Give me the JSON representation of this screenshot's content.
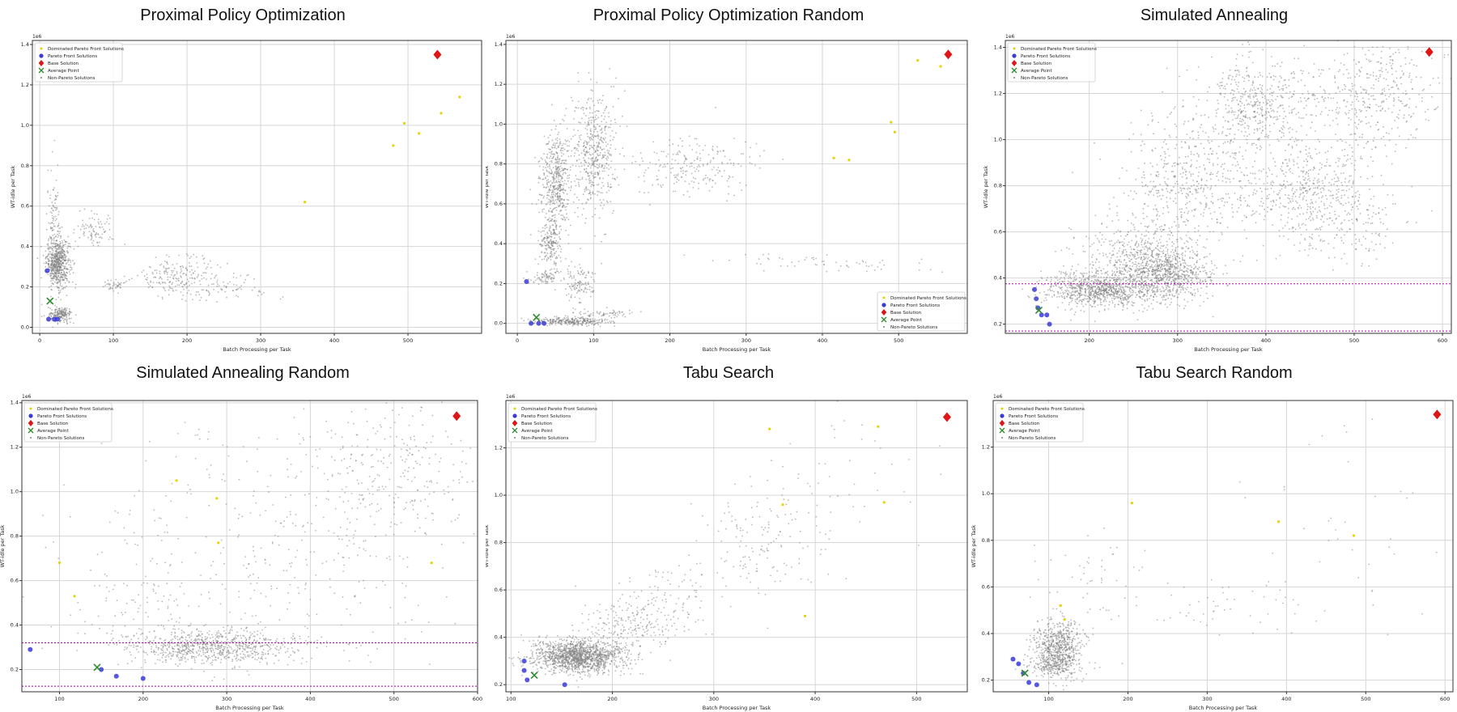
{
  "legend_labels": {
    "dominated": "Dominated Pareto Front Solutions",
    "pareto": "Pareto Front Solutions",
    "base": "Base Solution",
    "average": "Average Point",
    "non_pareto": "Non-Pareto Solutions"
  },
  "colors": {
    "non_pareto": "#808080",
    "dominated": "#e6d200",
    "pareto": "#3a3adb",
    "base": "#e01515",
    "average": "#2e8b2e",
    "threshold": "#b000b0"
  },
  "chart_data": [
    {
      "type": "scatter",
      "title": "Proximal Policy Optimization",
      "xlabel": "Batch Processing per Task",
      "ylabel": "WT-idle per Task",
      "y_scale_label": "1e6",
      "xlim": [
        -10,
        600
      ],
      "ylim": [
        -0.03,
        1.42
      ],
      "xticks": [
        0,
        100,
        200,
        300,
        400,
        500
      ],
      "yticks": [
        0.0,
        0.2,
        0.4,
        0.6,
        0.8,
        1.0,
        1.2,
        1.4
      ],
      "grid": true,
      "legend_position": "upper-left",
      "base": {
        "x": 540,
        "y": 1.35
      },
      "average": {
        "x": 14,
        "y": 0.13
      },
      "pareto_front": [
        [
          10,
          0.28
        ],
        [
          12,
          0.04
        ],
        [
          20,
          0.04
        ],
        [
          24,
          0.04
        ]
      ],
      "dominated": [
        [
          480,
          0.9
        ],
        [
          495,
          1.01
        ],
        [
          515,
          0.96
        ],
        [
          545,
          1.06
        ],
        [
          570,
          1.14
        ],
        [
          360,
          0.62
        ]
      ],
      "threshold_lines": [],
      "non_pareto_clusters": [
        {
          "cx": 25,
          "cy": 0.32,
          "sx": 8,
          "sy": 0.06,
          "n": 600
        },
        {
          "cx": 20,
          "cy": 0.45,
          "sx": 5,
          "sy": 0.15,
          "n": 150
        },
        {
          "cx": 28,
          "cy": 0.06,
          "sx": 8,
          "sy": 0.02,
          "n": 200
        },
        {
          "cx": 75,
          "cy": 0.48,
          "sx": 12,
          "sy": 0.04,
          "n": 90
        },
        {
          "cx": 100,
          "cy": 0.21,
          "sx": 8,
          "sy": 0.015,
          "n": 40
        },
        {
          "cx": 190,
          "cy": 0.25,
          "sx": 30,
          "sy": 0.05,
          "n": 220
        },
        {
          "cx": 260,
          "cy": 0.2,
          "sx": 30,
          "sy": 0.03,
          "n": 60
        }
      ]
    },
    {
      "type": "scatter",
      "title": "Proximal Policy Optimization Random",
      "xlabel": "Batch Processing per Task",
      "ylabel": "WT-idle per Task",
      "y_scale_label": "1e6",
      "xlim": [
        -15,
        590
      ],
      "ylim": [
        -0.05,
        1.42
      ],
      "xticks": [
        0,
        100,
        200,
        300,
        400,
        500
      ],
      "yticks": [
        0.0,
        0.2,
        0.4,
        0.6,
        0.8,
        1.0,
        1.2,
        1.4
      ],
      "grid": true,
      "legend_position": "lower-right",
      "base": {
        "x": 565,
        "y": 1.35
      },
      "average": {
        "x": 25,
        "y": 0.03
      },
      "pareto_front": [
        [
          12,
          0.21
        ],
        [
          18,
          0.0
        ],
        [
          28,
          0.0
        ],
        [
          35,
          0.0
        ]
      ],
      "dominated": [
        [
          415,
          0.83
        ],
        [
          435,
          0.82
        ],
        [
          490,
          1.01
        ],
        [
          495,
          0.96
        ],
        [
          525,
          1.32
        ],
        [
          555,
          1.29
        ]
      ],
      "threshold_lines": [],
      "non_pareto_clusters": [
        {
          "cx": 50,
          "cy": 0.72,
          "sx": 10,
          "sy": 0.12,
          "n": 500
        },
        {
          "cx": 100,
          "cy": 0.85,
          "sx": 15,
          "sy": 0.15,
          "n": 500
        },
        {
          "cx": 45,
          "cy": 0.4,
          "sx": 8,
          "sy": 0.06,
          "n": 200
        },
        {
          "cx": 35,
          "cy": 0.23,
          "sx": 10,
          "sy": 0.02,
          "n": 80
        },
        {
          "cx": 80,
          "cy": 0.2,
          "sx": 10,
          "sy": 0.05,
          "n": 120
        },
        {
          "cx": 70,
          "cy": 0.01,
          "sx": 25,
          "sy": 0.01,
          "n": 300
        },
        {
          "cx": 230,
          "cy": 0.8,
          "sx": 40,
          "sy": 0.07,
          "n": 220
        },
        {
          "cx": 120,
          "cy": 0.05,
          "sx": 20,
          "sy": 0.01,
          "n": 60
        },
        {
          "cx": 400,
          "cy": 0.3,
          "sx": 70,
          "sy": 0.03,
          "n": 60
        }
      ]
    },
    {
      "type": "scatter",
      "title": "Simulated Annealing",
      "xlabel": "Batch Processing per Task",
      "ylabel": "WT-idle per Task",
      "y_scale_label": "1e6",
      "xlim": [
        105,
        610
      ],
      "ylim": [
        0.16,
        1.43
      ],
      "xticks": [
        200,
        300,
        400,
        500,
        600
      ],
      "yticks": [
        0.2,
        0.4,
        0.6,
        0.8,
        1.0,
        1.2,
        1.4
      ],
      "grid": true,
      "legend_position": "upper-left",
      "base": {
        "x": 585,
        "y": 1.38
      },
      "average": {
        "x": 143,
        "y": 0.26
      },
      "pareto_front": [
        [
          138,
          0.35
        ],
        [
          140,
          0.31
        ],
        [
          142,
          0.27
        ],
        [
          146,
          0.24
        ],
        [
          152,
          0.24
        ],
        [
          155,
          0.2
        ]
      ],
      "dominated": [],
      "threshold_lines": [
        0.375,
        0.17
      ],
      "non_pareto_clusters": [
        {
          "cx": 210,
          "cy": 0.35,
          "sx": 30,
          "sy": 0.04,
          "n": 900
        },
        {
          "cx": 285,
          "cy": 0.42,
          "sx": 25,
          "sy": 0.06,
          "n": 900
        },
        {
          "cx": 250,
          "cy": 0.52,
          "sx": 30,
          "sy": 0.08,
          "n": 300
        },
        {
          "cx": 310,
          "cy": 0.8,
          "sx": 35,
          "sy": 0.15,
          "n": 500
        },
        {
          "cx": 390,
          "cy": 1.15,
          "sx": 30,
          "sy": 0.1,
          "n": 500
        },
        {
          "cx": 450,
          "cy": 0.8,
          "sx": 40,
          "sy": 0.1,
          "n": 500
        },
        {
          "cx": 520,
          "cy": 1.2,
          "sx": 40,
          "sy": 0.12,
          "n": 400
        },
        {
          "cx": 480,
          "cy": 0.6,
          "sx": 40,
          "sy": 0.08,
          "n": 150
        }
      ]
    },
    {
      "type": "scatter",
      "title": "Simulated Annealing Random",
      "xlabel": "Batch Processing per Task",
      "ylabel": "WT-idle per Task",
      "y_scale_label": "1e6",
      "xlim": [
        55,
        600
      ],
      "ylim": [
        0.1,
        1.41
      ],
      "xticks": [
        100,
        200,
        300,
        400,
        500,
        600
      ],
      "yticks": [
        0.2,
        0.4,
        0.6,
        0.8,
        1.0,
        1.2,
        1.4
      ],
      "grid": true,
      "legend_position": "upper-left",
      "base": {
        "x": 575,
        "y": 1.34
      },
      "average": {
        "x": 145,
        "y": 0.21
      },
      "pareto_front": [
        [
          65,
          0.29
        ],
        [
          150,
          0.2
        ],
        [
          168,
          0.17
        ],
        [
          200,
          0.16
        ]
      ],
      "dominated": [
        [
          100,
          0.68
        ],
        [
          118,
          0.53
        ],
        [
          240,
          1.05
        ],
        [
          288,
          0.97
        ],
        [
          290,
          0.77
        ],
        [
          545,
          0.68
        ]
      ],
      "threshold_lines": [
        0.32,
        0.125
      ],
      "non_pareto_clusters": [
        {
          "cx": 280,
          "cy": 0.3,
          "sx": 50,
          "sy": 0.04,
          "n": 800
        },
        {
          "cx": 350,
          "cy": 0.7,
          "sx": 120,
          "sy": 0.3,
          "n": 400
        },
        {
          "cx": 500,
          "cy": 1.1,
          "sx": 50,
          "sy": 0.15,
          "n": 250
        },
        {
          "cx": 200,
          "cy": 0.5,
          "sx": 40,
          "sy": 0.1,
          "n": 80
        }
      ]
    },
    {
      "type": "scatter",
      "title": "Tabu Search",
      "xlabel": "Batch Processing per Task",
      "ylabel": "WT-idle per Task",
      "y_scale_label": "1e6",
      "xlim": [
        95,
        550
      ],
      "ylim": [
        0.17,
        1.4
      ],
      "xticks": [
        100,
        200,
        300,
        400,
        500
      ],
      "yticks": [
        0.2,
        0.4,
        0.6,
        0.8,
        1.0,
        1.2
      ],
      "grid": true,
      "legend_position": "upper-left",
      "base": {
        "x": 530,
        "y": 1.33
      },
      "average": {
        "x": 123,
        "y": 0.24
      },
      "pareto_front": [
        [
          113,
          0.3
        ],
        [
          113,
          0.26
        ],
        [
          116,
          0.22
        ],
        [
          153,
          0.2
        ]
      ],
      "dominated": [
        [
          355,
          1.28
        ],
        [
          462,
          1.29
        ],
        [
          468,
          0.97
        ],
        [
          390,
          0.49
        ],
        [
          368,
          0.96
        ]
      ],
      "threshold_lines": [],
      "non_pareto_clusters": [
        {
          "cx": 165,
          "cy": 0.32,
          "sx": 22,
          "sy": 0.035,
          "n": 1500
        },
        {
          "cx": 220,
          "cy": 0.45,
          "sx": 25,
          "sy": 0.06,
          "n": 200
        },
        {
          "cx": 260,
          "cy": 0.55,
          "sx": 25,
          "sy": 0.07,
          "n": 100
        },
        {
          "cx": 350,
          "cy": 0.8,
          "sx": 30,
          "sy": 0.12,
          "n": 150
        },
        {
          "cx": 440,
          "cy": 1.1,
          "sx": 40,
          "sy": 0.15,
          "n": 40
        }
      ]
    },
    {
      "type": "scatter",
      "title": "Tabu Search Random",
      "xlabel": "Batch Processing per Task",
      "ylabel": "WT-idle per Task",
      "y_scale_label": "1e6",
      "xlim": [
        30,
        610
      ],
      "ylim": [
        0.15,
        1.4
      ],
      "xticks": [
        100,
        200,
        300,
        400,
        500,
        600
      ],
      "yticks": [
        0.2,
        0.4,
        0.6,
        0.8,
        1.0,
        1.2
      ],
      "grid": true,
      "legend_position": "upper-left",
      "base": {
        "x": 590,
        "y": 1.34
      },
      "average": {
        "x": 70,
        "y": 0.23
      },
      "pareto_front": [
        [
          55,
          0.29
        ],
        [
          62,
          0.27
        ],
        [
          68,
          0.23
        ],
        [
          75,
          0.19
        ],
        [
          85,
          0.18
        ]
      ],
      "dominated": [
        [
          115,
          0.52
        ],
        [
          120,
          0.46
        ],
        [
          205,
          0.96
        ],
        [
          390,
          0.88
        ],
        [
          485,
          0.82
        ]
      ],
      "threshold_lines": [],
      "non_pareto_clusters": [
        {
          "cx": 110,
          "cy": 0.34,
          "sx": 15,
          "sy": 0.06,
          "n": 700
        },
        {
          "cx": 110,
          "cy": 0.26,
          "sx": 18,
          "sy": 0.02,
          "n": 150
        },
        {
          "cx": 150,
          "cy": 0.6,
          "sx": 30,
          "sy": 0.15,
          "n": 60
        },
        {
          "cx": 330,
          "cy": 0.5,
          "sx": 60,
          "sy": 0.06,
          "n": 50
        },
        {
          "cx": 470,
          "cy": 0.9,
          "sx": 60,
          "sy": 0.25,
          "n": 40
        }
      ]
    }
  ]
}
